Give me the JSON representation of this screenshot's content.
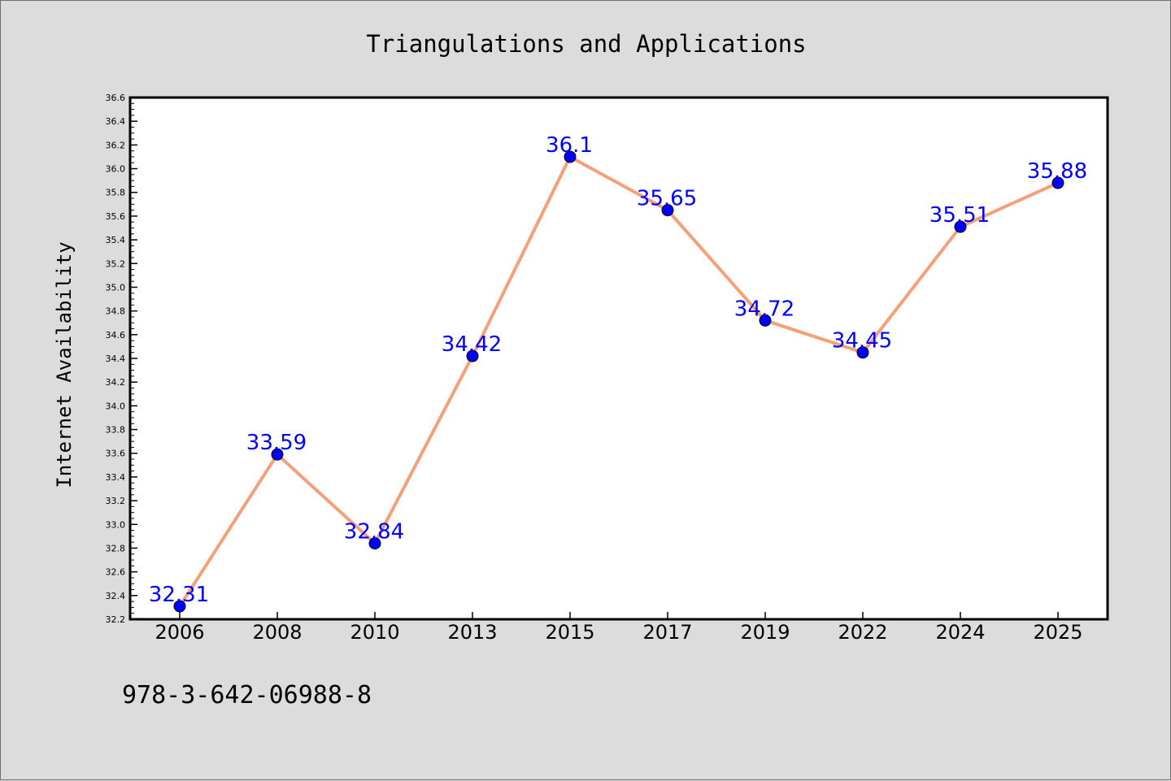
{
  "chart_data": {
    "type": "line",
    "title": "Triangulations and Applications",
    "ylabel": "Internet Availability",
    "xlabel": "",
    "categories": [
      "2006",
      "2008",
      "2010",
      "2013",
      "2015",
      "2017",
      "2019",
      "2022",
      "2024",
      "2025"
    ],
    "series": [
      {
        "values": [
          32.31,
          33.59,
          32.84,
          34.42,
          36.1,
          35.65,
          34.72,
          34.45,
          35.51,
          35.88
        ],
        "data_labels": [
          "32.31",
          "33.59",
          "32.84",
          "34.42",
          "36.1",
          "35.65",
          "34.72",
          "34.45",
          "35.51",
          "35.88"
        ]
      }
    ],
    "ylim": [
      32.2,
      36.6
    ],
    "yticks": [
      "32.2",
      "32.4",
      "32.6",
      "32.8",
      "33.0",
      "33.2",
      "33.4",
      "33.6",
      "33.8",
      "34.0",
      "34.2",
      "34.4",
      "34.6",
      "34.8",
      "35.0",
      "35.2",
      "35.4",
      "35.6",
      "35.8",
      "36.0",
      "36.2",
      "36.4",
      "36.6"
    ],
    "grid": false,
    "legend": "none",
    "colors": {
      "line": "#f4a07a",
      "marker": "#0000ff",
      "label": "#0000ff",
      "plot_bg": "#ffffff",
      "page_bg": "#dcdcdc"
    }
  },
  "footer": {
    "isbn": "978-3-642-06988-8"
  }
}
